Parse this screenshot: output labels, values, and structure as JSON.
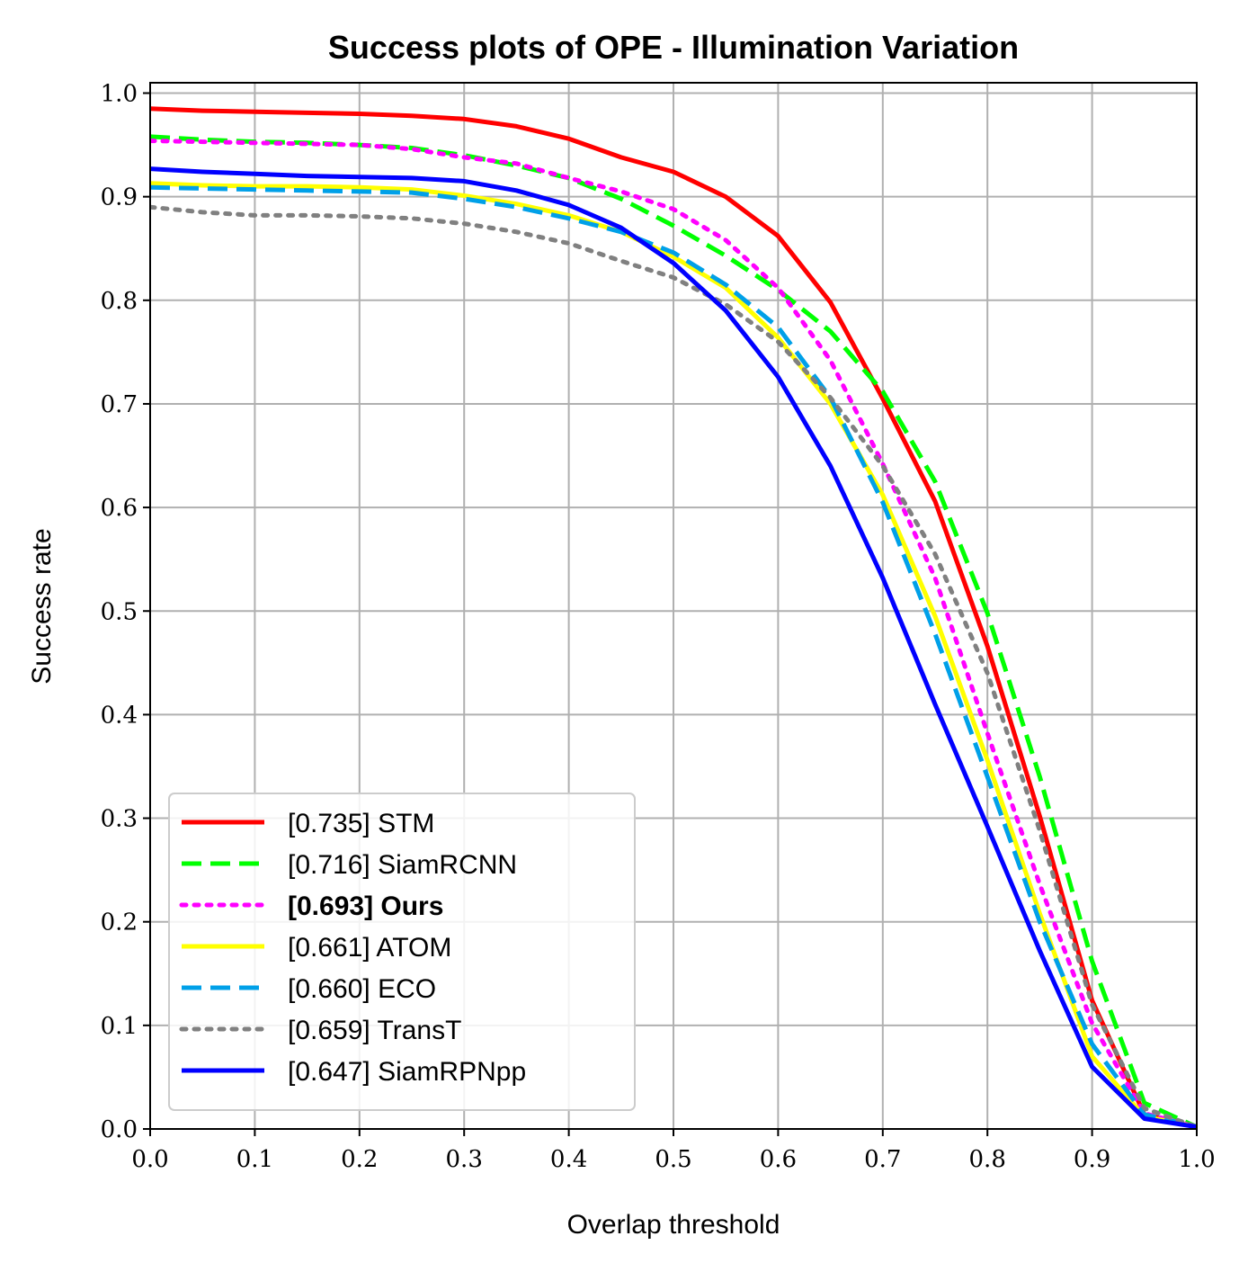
{
  "chart_data": {
    "type": "line",
    "title": "Success plots of OPE - Illumination Variation",
    "xlabel": "Overlap threshold",
    "ylabel": "Success rate",
    "xlim": [
      0,
      1
    ],
    "ylim": [
      0,
      1.01
    ],
    "xticks": [
      "0.0",
      "0.1",
      "0.2",
      "0.3",
      "0.4",
      "0.5",
      "0.6",
      "0.7",
      "0.8",
      "0.9",
      "1.0"
    ],
    "yticks": [
      "0.0",
      "0.1",
      "0.2",
      "0.3",
      "0.4",
      "0.5",
      "0.6",
      "0.7",
      "0.8",
      "0.9",
      "1.0"
    ],
    "grid": true,
    "legend_position": "lower-left",
    "x": [
      0,
      0.05,
      0.1,
      0.15,
      0.2,
      0.25,
      0.3,
      0.35,
      0.4,
      0.45,
      0.5,
      0.55,
      0.6,
      0.65,
      0.7,
      0.75,
      0.8,
      0.85,
      0.9,
      0.95,
      1.0
    ],
    "series": [
      {
        "name": "[0.735] STM",
        "color": "#ff0000",
        "style": "solid",
        "bold": false,
        "values": [
          0.985,
          0.983,
          0.982,
          0.981,
          0.98,
          0.978,
          0.975,
          0.968,
          0.956,
          0.938,
          0.924,
          0.9,
          0.862,
          0.798,
          0.705,
          0.606,
          0.466,
          0.302,
          0.124,
          0.014,
          0.002
        ]
      },
      {
        "name": "[0.716] SiamRCNN",
        "color": "#00ff00",
        "style": "dashed",
        "bold": false,
        "values": [
          0.958,
          0.955,
          0.953,
          0.952,
          0.95,
          0.947,
          0.94,
          0.93,
          0.918,
          0.898,
          0.872,
          0.843,
          0.81,
          0.77,
          0.712,
          0.625,
          0.498,
          0.34,
          0.162,
          0.025,
          0.002
        ]
      },
      {
        "name": "[0.693] Ours",
        "color": "#ff00ff",
        "style": "dotted",
        "bold": true,
        "values": [
          0.954,
          0.953,
          0.952,
          0.951,
          0.95,
          0.946,
          0.938,
          0.932,
          0.918,
          0.905,
          0.888,
          0.858,
          0.812,
          0.742,
          0.642,
          0.532,
          0.382,
          0.236,
          0.102,
          0.015,
          0.002
        ]
      },
      {
        "name": "[0.661] ATOM",
        "color": "#ffff00",
        "style": "solid",
        "bold": false,
        "values": [
          0.913,
          0.911,
          0.91,
          0.91,
          0.909,
          0.907,
          0.901,
          0.893,
          0.882,
          0.866,
          0.842,
          0.812,
          0.764,
          0.7,
          0.612,
          0.495,
          0.356,
          0.208,
          0.07,
          0.012,
          0.002
        ]
      },
      {
        "name": "[0.660] ECO",
        "color": "#00a0e8",
        "style": "dashed",
        "bold": false,
        "values": [
          0.909,
          0.908,
          0.907,
          0.906,
          0.905,
          0.904,
          0.898,
          0.89,
          0.879,
          0.866,
          0.846,
          0.815,
          0.774,
          0.706,
          0.605,
          0.478,
          0.34,
          0.2,
          0.082,
          0.014,
          0.002
        ]
      },
      {
        "name": "[0.659] TransT",
        "color": "#808080",
        "style": "dotted",
        "bold": false,
        "values": [
          0.89,
          0.885,
          0.882,
          0.882,
          0.881,
          0.879,
          0.874,
          0.866,
          0.855,
          0.838,
          0.822,
          0.796,
          0.76,
          0.706,
          0.64,
          0.555,
          0.44,
          0.288,
          0.12,
          0.02,
          0.002
        ]
      },
      {
        "name": "[0.647] SiamRPNpp",
        "color": "#0000ff",
        "style": "solid",
        "bold": false,
        "values": [
          0.927,
          0.924,
          0.922,
          0.92,
          0.919,
          0.918,
          0.915,
          0.906,
          0.892,
          0.87,
          0.836,
          0.79,
          0.726,
          0.64,
          0.532,
          0.41,
          0.292,
          0.172,
          0.06,
          0.01,
          0.002
        ]
      }
    ]
  }
}
